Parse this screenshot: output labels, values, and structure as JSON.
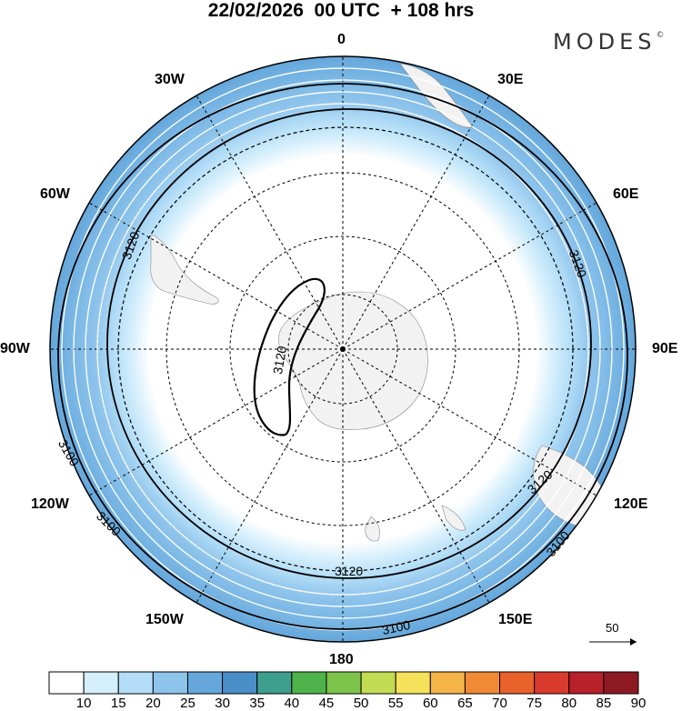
{
  "title": "22/02/2026  00 UTC  + 108 hrs",
  "logo": "MODES",
  "logo_mark": "©",
  "longitude_labels": {
    "deg_0": "0",
    "deg_30e": "30E",
    "deg_60e": "60E",
    "deg_90e": "90E",
    "deg_120e": "120E",
    "deg_150e": "150E",
    "deg_180": "180",
    "deg_150w": "150W",
    "deg_120w": "120W",
    "deg_90w": "90W",
    "deg_60w": "60W",
    "deg_30w": "30W"
  },
  "contour_labels": [
    "3120",
    "3120",
    "3120",
    "3120",
    "3120",
    "3100",
    "3100",
    "3100",
    "3100"
  ],
  "reference_vector": {
    "label": "50"
  },
  "colorbar": {
    "levels": [
      "10",
      "15",
      "20",
      "25",
      "30",
      "35",
      "40",
      "45",
      "50",
      "55",
      "60",
      "65",
      "70",
      "75",
      "80",
      "85",
      "90"
    ],
    "colors": [
      "#ffffff",
      "#d6effc",
      "#b4def7",
      "#8ec4ec",
      "#65a7db",
      "#4a8ec8",
      "#3e9f8c",
      "#4db24a",
      "#7cc44a",
      "#c3dc54",
      "#f6e15a",
      "#f5b447",
      "#f08a35",
      "#e9612b",
      "#d93a2b",
      "#b8202a",
      "#8d1a22"
    ]
  },
  "map_colors": {
    "land": "#f2f2f2",
    "contour": "#000000",
    "streamline": "#ffffff"
  }
}
